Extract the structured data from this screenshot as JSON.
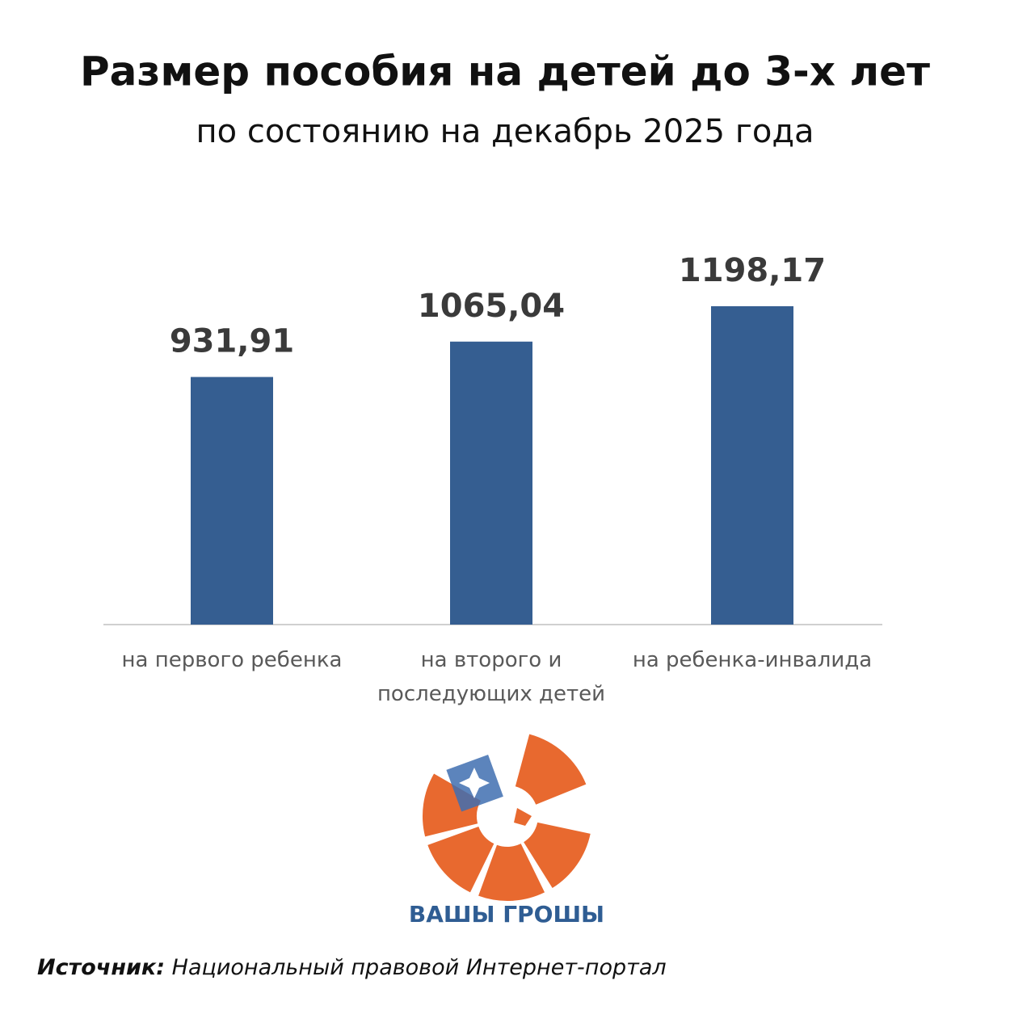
{
  "chart_data": {
    "type": "bar",
    "title": "Размер пособия на детей до 3-х лет",
    "subtitle": "по состоянию на декабрь 2025 года",
    "categories": [
      "на первого ребенка",
      "на второго и последующих детей",
      "на ребенка-инвалида"
    ],
    "values": [
      931.91,
      1065.04,
      1198.17
    ],
    "value_labels": [
      "931,91",
      "1065,04",
      "1198,17"
    ],
    "color": "#355e91"
  },
  "logo": {
    "text": "ВАШЫ ГРОШЫ"
  },
  "source": {
    "label": "Источник:",
    "text": "Национальный правовой Интернет-портал"
  }
}
